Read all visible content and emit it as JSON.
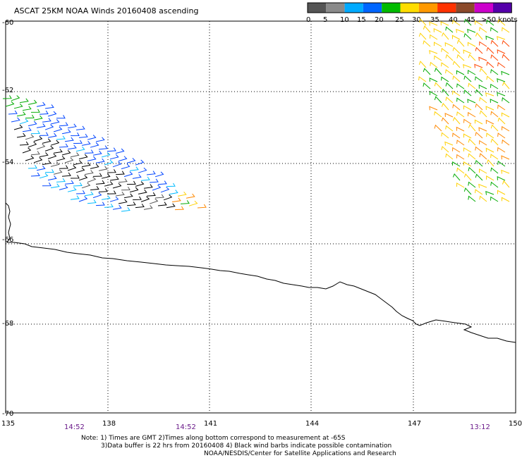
{
  "title": "ASCAT 25KM NOAA Winds 20160408 ascending",
  "legend": {
    "labels": [
      "0",
      "5",
      "10",
      "15",
      "20",
      "25",
      "30",
      "35",
      "40",
      "45",
      ">50 knots"
    ],
    "colors": [
      "#555555",
      "#8a8a8a",
      "#00aaff",
      "#0066ff",
      "#00bb00",
      "#ffdd00",
      "#ff9900",
      "#ff3300",
      "#8b4a2b",
      "#cc00cc",
      "#5500aa"
    ]
  },
  "map": {
    "lon_labels": [
      "135",
      "138",
      "141",
      "144",
      "147",
      "150"
    ],
    "lat_labels": [
      "-60",
      "-62",
      "-64",
      "-66",
      "-68",
      "-70"
    ],
    "time_labels": [
      "14:52",
      "14:52",
      "13:12"
    ]
  },
  "notes": {
    "line1": "Note: 1) Times are GMT 2)Times along bottom correspond to measurement at -65S",
    "line2": "3)Data buffer is 22 hrs from 20160408 4) Black wind barbs indicate possible contamination",
    "line3": "NOAA/NESDIS/Center for Satellite Applications and Research"
  },
  "colors": {
    "black": "#000000",
    "gray": "#555555",
    "cyan": "#00bbff",
    "blue": "#0044ff",
    "green": "#00aa00",
    "yellow": "#ffd000",
    "orange": "#ff8800",
    "red_orange": "#ff4400",
    "purple": "#6a1a8a"
  }
}
